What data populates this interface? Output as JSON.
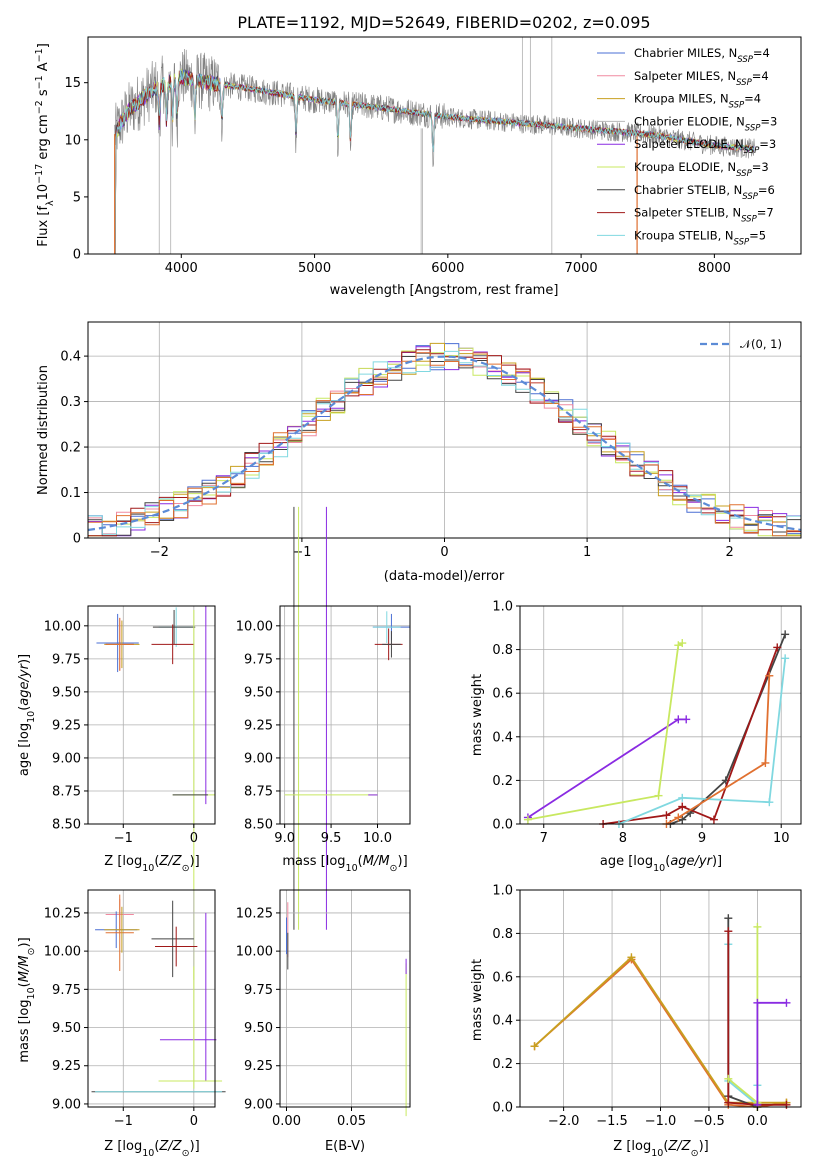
{
  "chart_data": [
    {
      "type": "line",
      "title": "PLATE=1192, MJD=52649, FIBERID=0202, z=0.095",
      "xlabel": "wavelength [Angstrom, rest frame]",
      "ylabel": "Flux [f",
      "ylabel_sub": "λ",
      "ylabel_rest": "10",
      "ylabel_parts": [
        "Flux [f",
        "λ",
        "10",
        "−17",
        " erg cm",
        "−2",
        " s",
        "−1",
        " A",
        "−1",
        "]"
      ],
      "xlim": [
        3300,
        8650
      ],
      "ylim": [
        0,
        19
      ],
      "xticks": [
        4000,
        5000,
        6000,
        7000,
        8000
      ],
      "yticks": [
        0,
        5,
        10,
        15
      ],
      "grid": false,
      "legend_placement": "top-right",
      "series": [
        {
          "name": "Chabrier MILES, N",
          "sub": "SSP",
          "suffix": "=4",
          "color": "#4a6fd4"
        },
        {
          "name": "Salpeter MILES, N",
          "sub": "SSP",
          "suffix": "=4",
          "color": "#f08aa0"
        },
        {
          "name": "Kroupa MILES, N",
          "sub": "SSP",
          "suffix": "=4",
          "color": "#c8a020"
        },
        {
          "name": "Chabrier ELODIE, N",
          "sub": "SSP",
          "suffix": "=3",
          "color": "#b8b8b8"
        },
        {
          "name": "Salpeter ELODIE, N",
          "sub": "SSP",
          "suffix": "=3",
          "color": "#8a2be2"
        },
        {
          "name": "Kroupa ELODIE, N",
          "sub": "SSP",
          "suffix": "=3",
          "color": "#c8e860"
        },
        {
          "name": "Chabrier STELIB, N",
          "sub": "SSP",
          "suffix": "=6",
          "color": "#444444"
        },
        {
          "name": "Salpeter STELIB, N",
          "sub": "SSP",
          "suffix": "=7",
          "color": "#a01818"
        },
        {
          "name": "Kroupa STELIB, N",
          "sub": "SSP",
          "suffix": "=5",
          "color": "#80d8e0"
        }
      ],
      "data_color": "#808080",
      "model_color": "#80d8e0",
      "continuum": {
        "x": [
          3500,
          3600,
          3800,
          4000,
          4200,
          4500,
          5000,
          5500,
          6000,
          6500,
          7000,
          7500,
          8000,
          8300
        ],
        "y": [
          10.5,
          12.5,
          14.5,
          15.5,
          15.0,
          14.5,
          13.5,
          12.8,
          12.0,
          11.5,
          11.0,
          10.5,
          9.5,
          9.2
        ]
      },
      "absorption_lines": [
        3835,
        3889,
        3934,
        3968,
        4102,
        4305,
        4861,
        5175,
        5270,
        5890
      ]
    },
    {
      "type": "line",
      "xlabel": "(data-model)/error",
      "ylabel": "Normed distribution",
      "xlim": [
        -2.5,
        2.5
      ],
      "ylim": [
        0,
        0.475
      ],
      "xticks": [
        -2,
        -1,
        0,
        1,
        2
      ],
      "yticks": [
        0.0,
        0.1,
        0.2,
        0.3,
        0.4
      ],
      "grid": true,
      "legend_placement": "top-right",
      "legend": "𝒩(0, 1)",
      "gaussian_color": "#5b8bd6",
      "bin_width": 0.1,
      "hist_colors": [
        "#4a6fd4",
        "#f08aa0",
        "#c8a020",
        "#8a2be2",
        "#c8e860",
        "#444444",
        "#a01818",
        "#80d8e0",
        "#e07030"
      ]
    },
    {
      "type": "scatter",
      "xlabel": "Z [log",
      "xlabel_parts": [
        "Z [log",
        "10",
        "(",
        "Z/Z",
        "⊙",
        ")]"
      ],
      "ylabel_parts": [
        "age  [log",
        "10",
        "(",
        "age/yr",
        ")]"
      ],
      "xlim": [
        -1.5,
        0.3
      ],
      "ylim": [
        8.5,
        10.15
      ],
      "xticks": [
        -1,
        0
      ],
      "yticks": [
        8.5,
        8.75,
        9.0,
        9.25,
        9.5,
        9.75,
        10.0
      ],
      "ytick_labels": [
        "8.50",
        "8.75",
        "9.00",
        "9.25",
        "9.50",
        "9.75",
        "10.00"
      ],
      "grid": true
    },
    {
      "type": "scatter",
      "xlabel_parts": [
        "mass [log",
        "10",
        "(",
        "M/M",
        "⊙",
        ")]"
      ],
      "xlim": [
        8.95,
        10.35
      ],
      "ylim": [
        8.5,
        10.15
      ],
      "xticks": [
        9.0,
        9.5,
        10.0
      ],
      "xtick_labels": [
        "9.0",
        "9.5",
        "10.0"
      ],
      "yticks": [
        8.5,
        8.75,
        9.0,
        9.25,
        9.5,
        9.75,
        10.0
      ],
      "ytick_labels": [
        "8.50",
        "8.75",
        "9.00",
        "9.25",
        "9.50",
        "9.75",
        "10.00"
      ],
      "grid": true
    },
    {
      "type": "line",
      "xlabel_parts": [
        "age  [log",
        "10",
        "(",
        "age/yr",
        ")]"
      ],
      "ylabel": "mass weight",
      "xlim": [
        6.7,
        10.25
      ],
      "ylim": [
        0,
        1
      ],
      "xticks": [
        7,
        8,
        9,
        10
      ],
      "yticks": [
        0.0,
        0.2,
        0.4,
        0.6,
        0.8,
        1.0
      ],
      "ytick_labels": [
        "0.0",
        "0.2",
        "0.4",
        "0.6",
        "0.8",
        "1.0"
      ],
      "grid": true,
      "series": [
        {
          "color": "#8a2be2",
          "x": [
            6.8,
            8.7,
            8.8
          ],
          "y": [
            0.03,
            0.48,
            0.48
          ]
        },
        {
          "color": "#c8e860",
          "x": [
            6.8,
            8.45,
            8.7,
            8.75
          ],
          "y": [
            0.02,
            0.13,
            0.82,
            0.83
          ]
        },
        {
          "color": "#444444",
          "x": [
            8.6,
            8.75,
            8.85,
            9.3,
            10.05
          ],
          "y": [
            0.0,
            0.02,
            0.05,
            0.2,
            0.87
          ]
        },
        {
          "color": "#a01818",
          "x": [
            7.75,
            8.55,
            8.75,
            9.15,
            9.95
          ],
          "y": [
            0.0,
            0.04,
            0.08,
            0.02,
            0.81
          ]
        },
        {
          "color": "#80d8e0",
          "x": [
            7.95,
            8.75,
            9.85,
            10.05
          ],
          "y": [
            0.0,
            0.12,
            0.1,
            0.76
          ]
        },
        {
          "color": "#e07030",
          "x": [
            8.55,
            8.7,
            9.8,
            9.85
          ],
          "y": [
            0.0,
            0.03,
            0.28,
            0.68
          ]
        }
      ]
    },
    {
      "type": "scatter",
      "xlabel_parts": [
        "Z [log",
        "10",
        "(",
        "Z/Z",
        "⊙",
        ")]"
      ],
      "ylabel_parts": [
        "mass [log",
        "10",
        "(",
        "M/M",
        "⊙",
        ")]"
      ],
      "xlim": [
        -1.5,
        0.3
      ],
      "ylim": [
        8.98,
        10.4
      ],
      "xticks": [
        -1,
        0
      ],
      "yticks": [
        9.0,
        9.25,
        9.5,
        9.75,
        10.0,
        10.25
      ],
      "ytick_labels": [
        "9.00",
        "9.25",
        "9.50",
        "9.75",
        "10.00",
        "10.25"
      ],
      "grid": true
    },
    {
      "type": "scatter",
      "xlabel": "E(B-V)",
      "xlim": [
        -0.005,
        0.095
      ],
      "ylim": [
        8.98,
        10.4
      ],
      "xticks": [
        0.0,
        0.05
      ],
      "xtick_labels": [
        "0.00",
        "0.05"
      ],
      "yticks": [
        9.0,
        9.25,
        9.5,
        9.75,
        10.0,
        10.25
      ],
      "ytick_labels": [
        "9.00",
        "9.25",
        "9.50",
        "9.75",
        "10.00",
        "10.25"
      ],
      "grid": true
    },
    {
      "type": "line",
      "xlabel_parts": [
        "Z [log",
        "10",
        "(",
        "Z/Z",
        "⊙",
        ")]"
      ],
      "ylabel": "mass weight",
      "xlim": [
        -2.45,
        0.45
      ],
      "ylim": [
        0,
        1
      ],
      "xticks": [
        -2.0,
        -1.5,
        -1.0,
        -0.5,
        0.0
      ],
      "xtick_labels": [
        "−2.0",
        "−1.5",
        "−1.0",
        "−0.5",
        "0.0"
      ],
      "yticks": [
        0.0,
        0.2,
        0.4,
        0.6,
        0.8,
        1.0
      ],
      "ytick_labels": [
        "0.0",
        "0.2",
        "0.4",
        "0.6",
        "0.8",
        "1.0"
      ],
      "grid": true,
      "series": [
        {
          "color": "#e07030",
          "x": [
            -2.3,
            -1.3,
            -0.3,
            0.0,
            0.3
          ],
          "y": [
            0.28,
            0.68,
            0.01,
            0.0,
            0.02
          ]
        },
        {
          "color": "#c8a020",
          "x": [
            -2.3,
            -1.3,
            -0.3,
            0.3
          ],
          "y": [
            0.28,
            0.69,
            0.02,
            0.02
          ]
        },
        {
          "color": "#80d8e0",
          "x": [
            -0.3,
            -0.3,
            0.0,
            0.0
          ],
          "y": [
            0.75,
            0.12,
            0.01,
            0.1
          ]
        },
        {
          "color": "#444444",
          "x": [
            -0.3,
            -0.3,
            0.0
          ],
          "y": [
            0.87,
            0.05,
            0.0
          ]
        },
        {
          "color": "#a01818",
          "x": [
            -0.3,
            -0.3,
            0.0,
            0.3
          ],
          "y": [
            0.81,
            0.02,
            0.01,
            0.01
          ]
        },
        {
          "color": "#c8e860",
          "x": [
            -0.3,
            0.0,
            0.0,
            0.0
          ],
          "y": [
            0.13,
            0.02,
            0.83,
            0.0
          ]
        },
        {
          "color": "#8a2be2",
          "x": [
            0.0,
            0.0,
            0.3
          ],
          "y": [
            0.01,
            0.48,
            0.48
          ]
        }
      ]
    }
  ]
}
